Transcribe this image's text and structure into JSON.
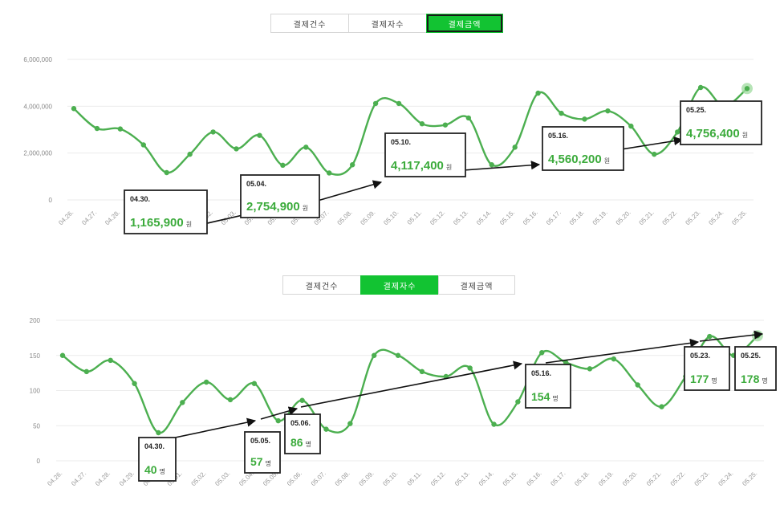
{
  "top": {
    "tabs": [
      {
        "label": "결제건수",
        "active": false
      },
      {
        "label": "결제자수",
        "active": false
      },
      {
        "label": "결제금액",
        "active": true
      }
    ]
  },
  "bottom": {
    "tabs": [
      {
        "label": "결제건수",
        "active": false
      },
      {
        "label": "결제자수",
        "active": true
      },
      {
        "label": "결제금액",
        "active": false
      }
    ]
  },
  "colors": {
    "line": "#4caf50",
    "accent": "#12c332",
    "grid": "#ebebeb",
    "value_text": "#3cab3c"
  },
  "chart_data": [
    {
      "type": "line",
      "title": "",
      "xlabel": "",
      "ylabel": "",
      "ylim": [
        0,
        6000000
      ],
      "y_ticks": [
        "0",
        "2,000,000",
        "4,000,000",
        "6,000,000"
      ],
      "categories": [
        "04.26.",
        "04.27.",
        "04.28.",
        "04.29.",
        "04.30.",
        "05.01.",
        "05.02.",
        "05.03.",
        "05.04.",
        "05.05.",
        "05.06.",
        "05.07.",
        "05.08.",
        "05.09.",
        "05.10.",
        "05.11.",
        "05.12.",
        "05.13.",
        "05.14.",
        "05.15.",
        "05.16.",
        "05.17.",
        "05.18.",
        "05.19.",
        "05.20.",
        "05.21.",
        "05.22.",
        "05.23.",
        "05.24.",
        "05.25."
      ],
      "values": [
        3900000,
        3050000,
        3030000,
        2350000,
        1165900,
        1950000,
        2900000,
        2180000,
        2754900,
        1480000,
        2250000,
        1150000,
        1500000,
        4117400,
        4117400,
        3250000,
        3200000,
        3500000,
        1500000,
        2250000,
        4560200,
        3700000,
        3450000,
        3800000,
        3150000,
        1950000,
        2900000,
        4800000,
        4000000,
        4756400
      ],
      "grid": true,
      "callouts": [
        {
          "date": "04.30.",
          "value": "1,165,900",
          "unit": "원"
        },
        {
          "date": "05.04.",
          "value": "2,754,900",
          "unit": "원"
        },
        {
          "date": "05.10.",
          "value": "4,117,400",
          "unit": "원"
        },
        {
          "date": "05.16.",
          "value": "4,560,200",
          "unit": "원"
        },
        {
          "date": "05.25.",
          "value": "4,756,400",
          "unit": "원"
        }
      ]
    },
    {
      "type": "line",
      "title": "",
      "xlabel": "",
      "ylabel": "",
      "ylim": [
        0,
        200
      ],
      "y_ticks": [
        "0",
        "50",
        "100",
        "150",
        "200"
      ],
      "categories": [
        "04.26.",
        "04.27.",
        "04.28.",
        "04.29.",
        "04.30.",
        "05.01.",
        "05.02.",
        "05.03.",
        "05.04.",
        "05.05.",
        "05.06.",
        "05.07.",
        "05.08.",
        "05.09.",
        "05.10.",
        "05.11.",
        "05.12.",
        "05.13.",
        "05.14.",
        "05.15.",
        "05.16.",
        "05.17.",
        "05.18.",
        "05.19.",
        "05.20.",
        "05.21.",
        "05.22.",
        "05.23.",
        "05.24.",
        "05.25."
      ],
      "values": [
        150,
        127,
        143,
        110,
        40,
        83,
        112,
        87,
        110,
        57,
        86,
        45,
        53,
        150,
        150,
        127,
        120,
        132,
        52,
        84,
        154,
        140,
        131,
        145,
        108,
        77,
        120,
        177,
        150,
        178
      ],
      "grid": true,
      "callouts": [
        {
          "date": "04.30.",
          "value": "40",
          "unit": "명"
        },
        {
          "date": "05.05.",
          "value": "57",
          "unit": "명"
        },
        {
          "date": "05.06.",
          "value": "86",
          "unit": "명"
        },
        {
          "date": "05.16.",
          "value": "154",
          "unit": "명"
        },
        {
          "date": "05.23.",
          "value": "177",
          "unit": "명"
        },
        {
          "date": "05.25.",
          "value": "178",
          "unit": "명"
        }
      ]
    }
  ]
}
